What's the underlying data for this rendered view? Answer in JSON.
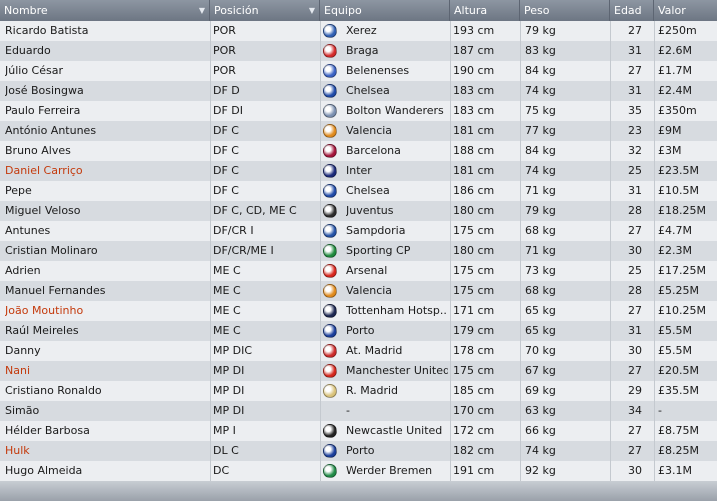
{
  "columns": {
    "nombre": "Nombre",
    "posicion": "Posición",
    "equipo": "Equipo",
    "altura": "Altura",
    "peso": "Peso",
    "edad": "Edad",
    "valor": "Valor"
  },
  "rows": [
    {
      "nombre": "Ricardo Batista",
      "posicion": "POR",
      "equipo": "Xerez",
      "altura": "193 cm",
      "peso": "79 kg",
      "edad": "27",
      "valor": "£250m",
      "badge_icon": "xerez-crest-icon",
      "badge_color": "#2f5fb3",
      "highlight": false
    },
    {
      "nombre": "Eduardo",
      "posicion": "POR",
      "equipo": "Braga",
      "altura": "187 cm",
      "peso": "83 kg",
      "edad": "31",
      "valor": "£2.6M",
      "badge_icon": "braga-crest-icon",
      "badge_color": "#d42a2a",
      "highlight": false
    },
    {
      "nombre": "Júlio César",
      "posicion": "POR",
      "equipo": "Belenenses",
      "altura": "190 cm",
      "peso": "84 kg",
      "edad": "27",
      "valor": "£1.7M",
      "badge_icon": "belenenses-crest-icon",
      "badge_color": "#3a62c4",
      "highlight": false
    },
    {
      "nombre": "José Bosingwa",
      "posicion": "DF D",
      "equipo": "Chelsea",
      "altura": "183 cm",
      "peso": "74 kg",
      "edad": "31",
      "valor": "£2.4M",
      "badge_icon": "chelsea-crest-icon",
      "badge_color": "#1f4aa8",
      "highlight": false
    },
    {
      "nombre": "Paulo Ferreira",
      "posicion": "DF DI",
      "equipo": "Bolton Wanderers",
      "altura": "183 cm",
      "peso": "75 kg",
      "edad": "35",
      "valor": "£350m",
      "badge_icon": "bolton-crest-icon",
      "badge_color": "#7a8fb0",
      "highlight": false
    },
    {
      "nombre": "António Antunes",
      "posicion": "DF C",
      "equipo": "Valencia",
      "altura": "181 cm",
      "peso": "77 kg",
      "edad": "23",
      "valor": "£9M",
      "badge_icon": "valencia-crest-icon",
      "badge_color": "#e08a1c",
      "highlight": false
    },
    {
      "nombre": "Bruno Alves",
      "posicion": "DF C",
      "equipo": "Barcelona",
      "altura": "188 cm",
      "peso": "84 kg",
      "edad": "32",
      "valor": "£3M",
      "badge_icon": "barcelona-crest-icon",
      "badge_color": "#a3143a",
      "highlight": false
    },
    {
      "nombre": "Daniel Carriço",
      "posicion": "DF C",
      "equipo": "Inter",
      "altura": "181 cm",
      "peso": "74 kg",
      "edad": "25",
      "valor": "£23.5M",
      "badge_icon": "inter-crest-icon",
      "badge_color": "#1b2a7a",
      "highlight": true
    },
    {
      "nombre": "Pepe",
      "posicion": "DF C",
      "equipo": "Chelsea",
      "altura": "186 cm",
      "peso": "71 kg",
      "edad": "31",
      "valor": "£10.5M",
      "badge_icon": "chelsea-crest-icon",
      "badge_color": "#1f4aa8",
      "highlight": false
    },
    {
      "nombre": "Miguel Veloso",
      "posicion": "DF C, CD, ME C",
      "equipo": "Juventus",
      "altura": "180 cm",
      "peso": "79 kg",
      "edad": "28",
      "valor": "£18.25M",
      "badge_icon": "juventus-crest-icon",
      "badge_color": "#2b2b2b",
      "highlight": false
    },
    {
      "nombre": "Antunes",
      "posicion": "DF/CR I",
      "equipo": "Sampdoria",
      "altura": "175 cm",
      "peso": "68 kg",
      "edad": "27",
      "valor": "£4.7M",
      "badge_icon": "sampdoria-crest-icon",
      "badge_color": "#2452a6",
      "highlight": false
    },
    {
      "nombre": "Cristian Molinaro",
      "posicion": "DF/CR/ME I",
      "equipo": "Sporting CP",
      "altura": "180 cm",
      "peso": "71 kg",
      "edad": "30",
      "valor": "£2.3M",
      "badge_icon": "sporting-crest-icon",
      "badge_color": "#1e8a3c",
      "highlight": false
    },
    {
      "nombre": "Adrien",
      "posicion": "ME C",
      "equipo": "Arsenal",
      "altura": "175 cm",
      "peso": "73 kg",
      "edad": "25",
      "valor": "£17.25M",
      "badge_icon": "arsenal-crest-icon",
      "badge_color": "#d8261d",
      "highlight": false
    },
    {
      "nombre": "Manuel Fernandes",
      "posicion": "ME C",
      "equipo": "Valencia",
      "altura": "175 cm",
      "peso": "68 kg",
      "edad": "28",
      "valor": "£5.25M",
      "badge_icon": "valencia-crest-icon",
      "badge_color": "#e08a1c",
      "highlight": false
    },
    {
      "nombre": "João Moutinho",
      "posicion": "ME C",
      "equipo": "Tottenham Hotsp..",
      "altura": "171 cm",
      "peso": "65 kg",
      "edad": "27",
      "valor": "£10.25M",
      "badge_icon": "tottenham-crest-icon",
      "badge_color": "#1c2752",
      "highlight": true
    },
    {
      "nombre": "Raúl Meireles",
      "posicion": "ME C",
      "equipo": "Porto",
      "altura": "179 cm",
      "peso": "65 kg",
      "edad": "31",
      "valor": "£5.5M",
      "badge_icon": "porto-crest-icon",
      "badge_color": "#1b3f9c",
      "highlight": false
    },
    {
      "nombre": "Danny",
      "posicion": "MP DIC",
      "equipo": "At. Madrid",
      "altura": "178 cm",
      "peso": "70 kg",
      "edad": "30",
      "valor": "£5.5M",
      "badge_icon": "atletico-crest-icon",
      "badge_color": "#cc2a2a",
      "highlight": false
    },
    {
      "nombre": "Nani",
      "posicion": "MP DI",
      "equipo": "Manchester United",
      "altura": "175 cm",
      "peso": "67 kg",
      "edad": "27",
      "valor": "£20.5M",
      "badge_icon": "manutd-crest-icon",
      "badge_color": "#d4261c",
      "highlight": true
    },
    {
      "nombre": "Cristiano Ronaldo",
      "posicion": "MP DI",
      "equipo": "R. Madrid",
      "altura": "185 cm",
      "peso": "69 kg",
      "edad": "29",
      "valor": "£35.5M",
      "badge_icon": "realmadrid-crest-icon",
      "badge_color": "#d9c27a",
      "highlight": false
    },
    {
      "nombre": "Simão",
      "posicion": "MP DI",
      "equipo": "-",
      "altura": "170 cm",
      "peso": "63 kg",
      "edad": "34",
      "valor": "-",
      "badge_icon": "",
      "badge_color": "",
      "highlight": false
    },
    {
      "nombre": "Hélder Barbosa",
      "posicion": "MP I",
      "equipo": "Newcastle United",
      "altura": "172 cm",
      "peso": "66 kg",
      "edad": "27",
      "valor": "£8.75M",
      "badge_icon": "newcastle-crest-icon",
      "badge_color": "#222222",
      "highlight": false
    },
    {
      "nombre": "Hulk",
      "posicion": "DL C",
      "equipo": "Porto",
      "altura": "182 cm",
      "peso": "74 kg",
      "edad": "27",
      "valor": "£8.25M",
      "badge_icon": "porto-crest-icon",
      "badge_color": "#1b3f9c",
      "highlight": true
    },
    {
      "nombre": "Hugo Almeida",
      "posicion": "DC",
      "equipo": "Werder Bremen",
      "altura": "191 cm",
      "peso": "92 kg",
      "edad": "30",
      "valor": "£3.1M",
      "badge_icon": "werder-crest-icon",
      "badge_color": "#1f8a46",
      "highlight": false
    }
  ]
}
